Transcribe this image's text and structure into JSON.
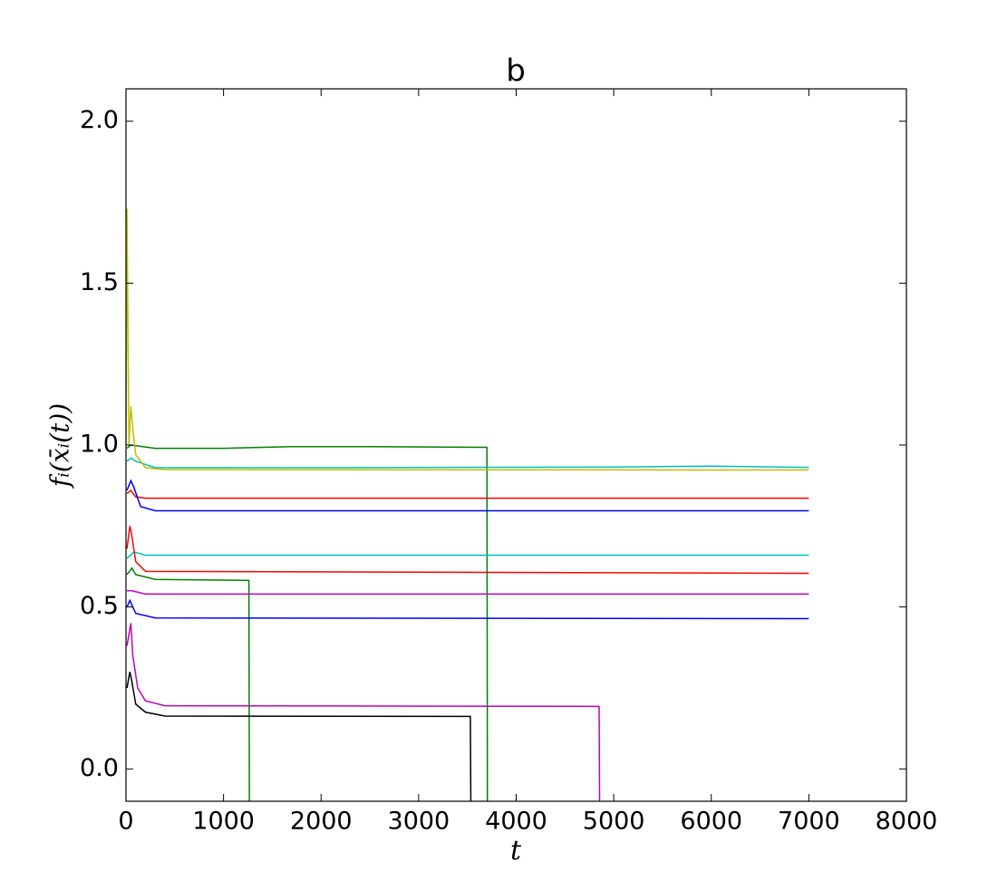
{
  "chart_data": {
    "type": "line",
    "title": "b",
    "x_label": "t",
    "y_label": "fᵢ(x̄ᵢ(t))",
    "xlim": [
      0,
      8000
    ],
    "ylim": [
      -0.1,
      2.1
    ],
    "xticks": [
      0,
      1000,
      2000,
      3000,
      4000,
      5000,
      6000,
      7000,
      8000
    ],
    "yticks": [
      {
        "value": 0,
        "label": "0.0"
      },
      0.5,
      {
        "value": 1,
        "label": "1.0"
      },
      1.5,
      {
        "value": 2,
        "label": "2.0"
      }
    ],
    "series": [
      {
        "color": "#008000",
        "x": [
          10,
          50,
          300,
          1000,
          1700,
          2500,
          3700,
          3705
        ],
        "values": [
          0.99,
          1.0,
          0.99,
          0.99,
          0.995,
          0.995,
          0.993,
          -0.1
        ]
      },
      {
        "color": "#00bfbf",
        "x": [
          10,
          50,
          100,
          300,
          2000,
          5000,
          6000,
          7000
        ],
        "values": [
          0.95,
          0.96,
          0.95,
          0.93,
          0.93,
          0.932,
          0.935,
          0.931
        ]
      },
      {
        "color": "#bfbf00",
        "x": [
          0,
          10,
          30,
          50,
          70,
          100,
          200,
          400,
          7000
        ],
        "values": [
          1.0,
          1.73,
          1.0,
          1.12,
          1.05,
          0.97,
          0.93,
          0.924,
          0.923
        ]
      },
      {
        "color": "#ff0000",
        "x": [
          10,
          50,
          100,
          200,
          7000
        ],
        "values": [
          0.85,
          0.86,
          0.84,
          0.836,
          0.836
        ]
      },
      {
        "color": "#0000ff",
        "x": [
          10,
          50,
          80,
          150,
          300,
          7000
        ],
        "values": [
          0.86,
          0.89,
          0.87,
          0.81,
          0.797,
          0.797
        ]
      },
      {
        "color": "#00bfbf",
        "x": [
          10,
          80,
          200,
          7000
        ],
        "values": [
          0.65,
          0.67,
          0.66,
          0.66
        ]
      },
      {
        "color": "#ff0000",
        "x": [
          10,
          40,
          60,
          100,
          200,
          7000
        ],
        "values": [
          0.68,
          0.75,
          0.72,
          0.64,
          0.61,
          0.604
        ]
      },
      {
        "color": "#008000",
        "x": [
          10,
          60,
          100,
          300,
          1260,
          1265
        ],
        "values": [
          0.6,
          0.62,
          0.6,
          0.585,
          0.582,
          -0.1
        ]
      },
      {
        "color": "#bf00bf",
        "x": [
          10,
          60,
          200,
          7000
        ],
        "values": [
          0.55,
          0.55,
          0.54,
          0.54
        ]
      },
      {
        "color": "#0000ff",
        "x": [
          10,
          40,
          100,
          300,
          7000
        ],
        "values": [
          0.5,
          0.52,
          0.48,
          0.466,
          0.464
        ]
      },
      {
        "color": "#bf00bf",
        "x": [
          10,
          50,
          70,
          120,
          200,
          400,
          4850,
          4855
        ],
        "values": [
          0.38,
          0.45,
          0.35,
          0.25,
          0.21,
          0.195,
          0.193,
          -0.1
        ]
      },
      {
        "color": "#000000",
        "x": [
          10,
          40,
          60,
          100,
          200,
          400,
          3530,
          3535
        ],
        "values": [
          0.25,
          0.3,
          0.27,
          0.2,
          0.175,
          0.163,
          0.162,
          -0.1
        ]
      }
    ]
  }
}
